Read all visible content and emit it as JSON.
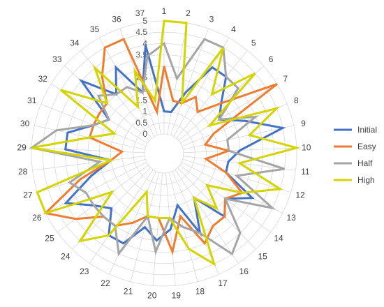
{
  "chart_data": {
    "type": "radar",
    "categories": [
      "1",
      "2",
      "3",
      "4",
      "5",
      "6",
      "7",
      "8",
      "9",
      "10",
      "11",
      "12",
      "13",
      "14",
      "15",
      "16",
      "17",
      "18",
      "19",
      "20",
      "21",
      "22",
      "23",
      "24",
      "25",
      "26",
      "27",
      "28",
      "29",
      "30",
      "31",
      "32",
      "33",
      "34",
      "35",
      "36",
      "37"
    ],
    "rticks": [
      "0",
      "0.5",
      "1",
      "1.5",
      "2",
      "2.5",
      "3",
      "3.5",
      "4",
      "4.5",
      "5"
    ],
    "rlim": [
      0,
      5
    ],
    "legend_position": "right",
    "series": [
      {
        "name": "Initial",
        "color": "#4472C4",
        "values": [
          1,
          1,
          2,
          3.5,
          3.5,
          2.5,
          2,
          3,
          4.5,
          2.5,
          2,
          2,
          3.5,
          2.5,
          3,
          1.5,
          3,
          1.5,
          2.5,
          3,
          2.5,
          3.5,
          3.5,
          2.5,
          3,
          4,
          2.5,
          1.5,
          3.5,
          3.5,
          2.5,
          2,
          4,
          2.5,
          3.5,
          2,
          4
        ]
      },
      {
        "name": "Easy",
        "color": "#ED7D31",
        "values": [
          3,
          1.5,
          1.5,
          2,
          1.5,
          2.5,
          5,
          1.5,
          1,
          2,
          1,
          2,
          3,
          2.5,
          3,
          3,
          3.5,
          2,
          3.5,
          2,
          2,
          2.5,
          3,
          3,
          4,
          5,
          3,
          1.5,
          1,
          2.5,
          2.5,
          2.5,
          2.5,
          3.5,
          4.5,
          4.5,
          1
        ]
      },
      {
        "name": "Half",
        "color": "#A5A5A5",
        "values": [
          4,
          2.5,
          4.5,
          4.5,
          3.5,
          3.5,
          2,
          3.5,
          2,
          2,
          4.5,
          2.5,
          4.5,
          2.5,
          4,
          4.5,
          3,
          2.5,
          2,
          3.5,
          2,
          4,
          3,
          3,
          3,
          3,
          3.5,
          2,
          5,
          4,
          2.5,
          2,
          3,
          2.5,
          2.5,
          2,
          3.5
        ]
      },
      {
        "name": "High",
        "color": "#D4D400",
        "values": [
          5,
          5,
          1.5,
          4.5,
          2.5,
          4.5,
          1.5,
          4.5,
          3,
          5,
          2.5,
          4.5,
          3,
          1.5,
          2.5,
          1.5,
          4.5,
          3.5,
          2,
          2,
          2,
          1,
          3.5,
          4.5,
          2,
          5,
          5,
          1.5,
          5,
          2.5,
          1.5,
          4.5,
          2.5,
          4,
          1.5,
          3,
          1.5
        ]
      }
    ]
  }
}
